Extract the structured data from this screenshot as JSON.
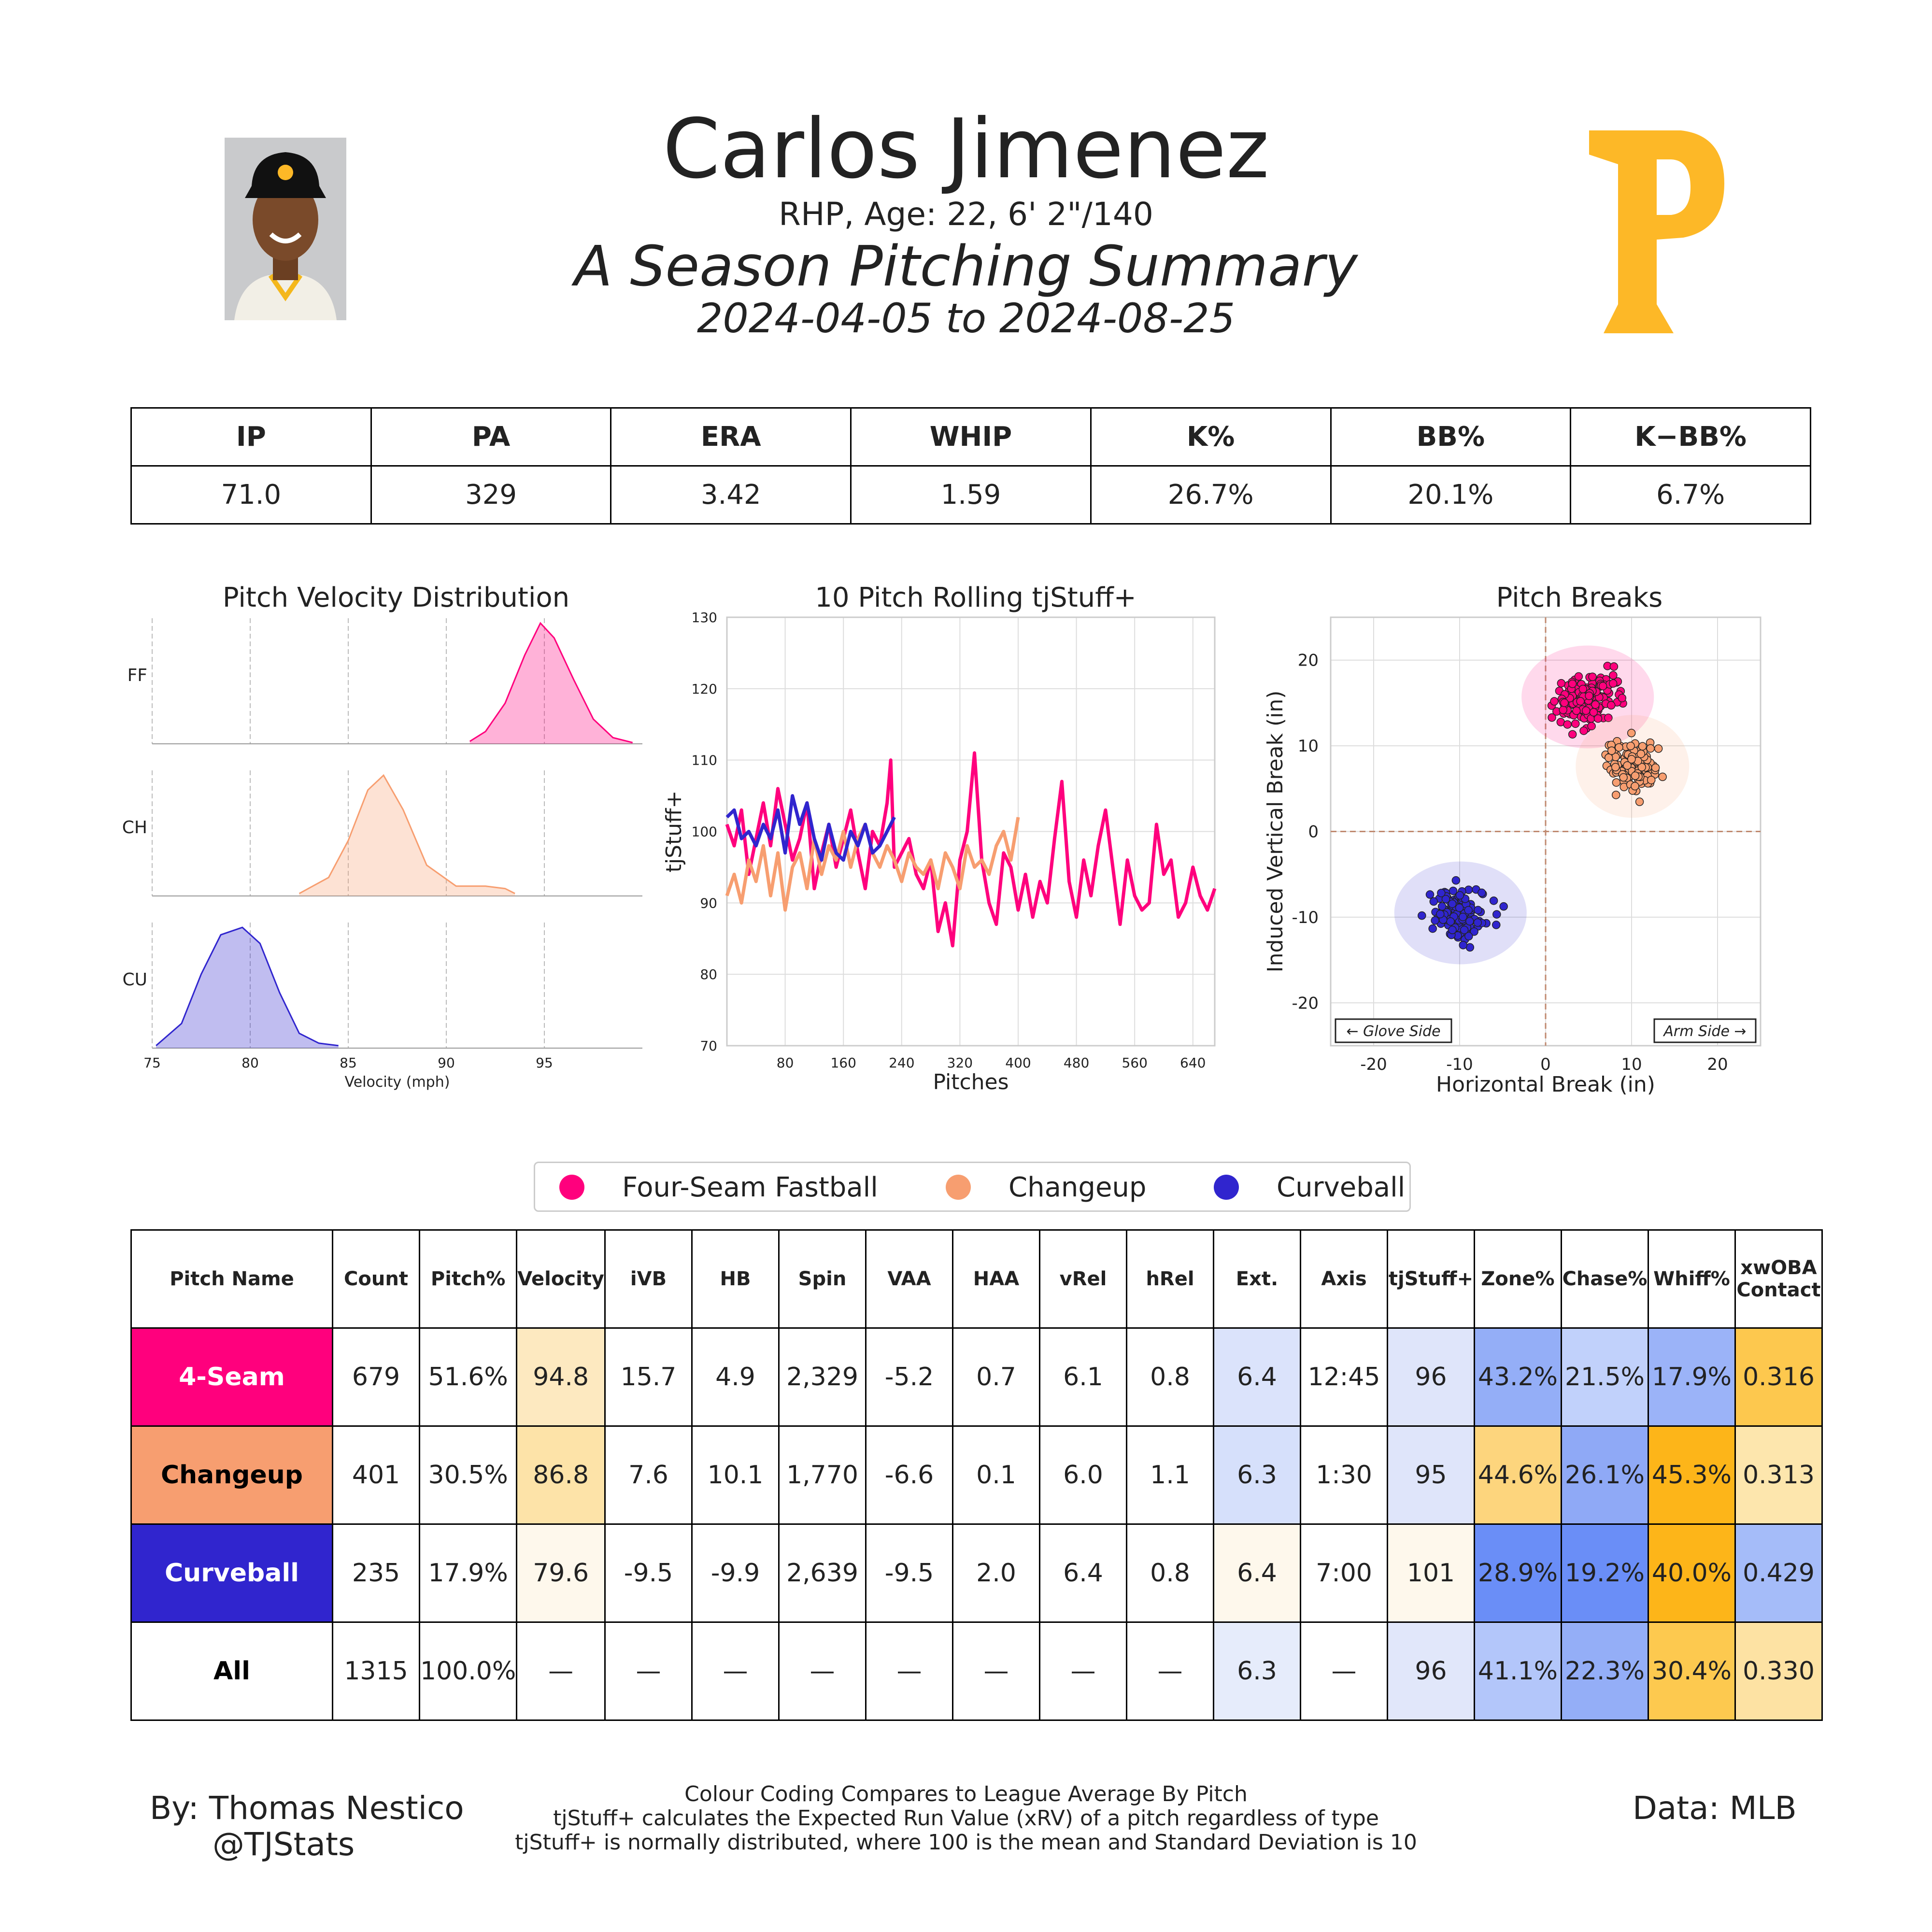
{
  "header": {
    "name": "Carlos Jimenez",
    "bio": "RHP, Age: 22, 6' 2\"/140",
    "subtitle": "A Season Pitching Summary",
    "dates": "2024-04-05 to 2024-08-25"
  },
  "summary": {
    "headers": [
      "IP",
      "PA",
      "ERA",
      "WHIP",
      "K%",
      "BB%",
      "K−BB%"
    ],
    "values": [
      "71.0",
      "329",
      "3.42",
      "1.59",
      "26.7%",
      "20.1%",
      "6.7%"
    ]
  },
  "colors": {
    "four_seam": "#ff007d",
    "changeup": "#f79e70",
    "curveball": "#3025ce",
    "logo": "#fdb827"
  },
  "legend": [
    "Four-Seam Fastball",
    "Changeup",
    "Curveball"
  ],
  "chart_data": [
    {
      "type": "area",
      "title": "Pitch Velocity Distribution",
      "xlabel": "Velocity (mph)",
      "xlim": [
        75,
        100
      ],
      "xticks": [
        75,
        80,
        85,
        90,
        95
      ],
      "series": [
        {
          "name": "FF",
          "x": [
            91.2,
            92,
            93,
            94,
            94.8,
            95.5,
            96.5,
            97.5,
            98.5,
            99.5
          ],
          "y": [
            0.02,
            0.1,
            0.33,
            0.72,
            0.98,
            0.86,
            0.52,
            0.2,
            0.05,
            0.01
          ]
        },
        {
          "name": "CH",
          "x": [
            82.5,
            84,
            85,
            86,
            86.8,
            87.8,
            89,
            90.5,
            92,
            93,
            93.5
          ],
          "y": [
            0.02,
            0.15,
            0.45,
            0.86,
            0.98,
            0.7,
            0.25,
            0.08,
            0.08,
            0.06,
            0.02
          ]
        },
        {
          "name": "CU",
          "x": [
            75.2,
            76.5,
            77.5,
            78.5,
            79.6,
            80.5,
            81.5,
            82.5,
            83.5,
            84.5
          ],
          "y": [
            0.02,
            0.2,
            0.6,
            0.92,
            0.98,
            0.85,
            0.45,
            0.12,
            0.04,
            0.02
          ]
        }
      ]
    },
    {
      "type": "line",
      "title": "10 Pitch Rolling tjStuff+",
      "xlabel": "Pitches",
      "ylabel": "tjStuff+",
      "xticks": [
        80,
        160,
        240,
        320,
        400,
        480,
        560,
        640
      ],
      "yticks": [
        70,
        80,
        90,
        100,
        110,
        120,
        130
      ],
      "xlim": [
        0,
        670
      ],
      "ylim": [
        70,
        130
      ],
      "series": [
        {
          "name": "4-Seam",
          "x": [
            0,
            10,
            20,
            30,
            40,
            50,
            60,
            70,
            80,
            90,
            100,
            110,
            120,
            130,
            140,
            150,
            160,
            170,
            180,
            190,
            200,
            210,
            220,
            225,
            230,
            240,
            250,
            260,
            270,
            280,
            290,
            300,
            310,
            320,
            330,
            340,
            350,
            360,
            370,
            380,
            390,
            400,
            410,
            420,
            430,
            440,
            450,
            460,
            470,
            480,
            490,
            500,
            510,
            520,
            530,
            540,
            550,
            560,
            570,
            580,
            590,
            600,
            610,
            620,
            630,
            640,
            650,
            660,
            670
          ],
          "y": [
            101,
            98,
            103,
            94,
            99,
            104,
            98,
            106,
            101,
            96,
            99,
            104,
            92,
            97,
            101,
            95,
            99,
            103,
            97,
            92,
            100,
            98,
            104,
            110,
            95,
            97,
            99,
            94,
            92,
            96,
            86,
            90,
            84,
            96,
            100,
            111,
            96,
            90,
            87,
            97,
            95,
            89,
            94,
            88,
            93,
            90,
            99,
            107,
            93,
            88,
            96,
            91,
            98,
            103,
            95,
            87,
            96,
            91,
            89,
            90,
            101,
            94,
            96,
            88,
            90,
            95,
            91,
            89,
            92
          ]
        },
        {
          "name": "Changeup",
          "x": [
            0,
            10,
            20,
            30,
            40,
            50,
            60,
            70,
            80,
            90,
            100,
            110,
            120,
            130,
            140,
            150,
            160,
            170,
            180,
            190,
            200,
            210,
            220,
            230,
            240,
            250,
            260,
            270,
            280,
            290,
            300,
            310,
            320,
            330,
            340,
            350,
            360,
            370,
            380,
            390,
            400
          ],
          "y": [
            91,
            94,
            90,
            96,
            93,
            98,
            91,
            97,
            89,
            95,
            97,
            92,
            99,
            94,
            98,
            96,
            100,
            95,
            99,
            101,
            97,
            95,
            98,
            96,
            93,
            97,
            95,
            94,
            96,
            92,
            97,
            95,
            92,
            98,
            95,
            96,
            94,
            98,
            100,
            96,
            102
          ]
        },
        {
          "name": "Curveball",
          "x": [
            0,
            10,
            20,
            30,
            40,
            50,
            60,
            70,
            80,
            90,
            100,
            110,
            120,
            130,
            140,
            150,
            160,
            170,
            180,
            190,
            200,
            210,
            220,
            230
          ],
          "y": [
            102,
            103,
            99,
            100,
            98,
            101,
            99,
            103,
            97,
            105,
            101,
            104,
            99,
            96,
            101,
            97,
            96,
            100,
            98,
            101,
            97,
            98,
            100,
            102
          ]
        }
      ]
    },
    {
      "type": "scatter",
      "title": "Pitch Breaks",
      "xlabel": "Horizontal Break (in)",
      "ylabel": "Induced Vertical Break (in)",
      "xlim": [
        -25,
        25
      ],
      "ylim": [
        -25,
        25
      ],
      "xticks": [
        -20,
        -10,
        0,
        10,
        20
      ],
      "yticks": [
        -20,
        -10,
        0,
        10,
        20
      ],
      "annotations": [
        "← Glove Side",
        "Arm Side →"
      ],
      "series": [
        {
          "name": "Four-Seam Fastball",
          "center": [
            4.9,
            15.7
          ],
          "spread": [
            3.5,
            3.0
          ]
        },
        {
          "name": "Changeup",
          "center": [
            10.1,
            7.6
          ],
          "spread": [
            3.0,
            3.0
          ]
        },
        {
          "name": "Curveball",
          "center": [
            -9.9,
            -9.5
          ],
          "spread": [
            3.5,
            3.0
          ]
        }
      ]
    }
  ],
  "pitch_table": {
    "headers": [
      "Pitch Name",
      "Count",
      "Pitch%",
      "Velocity",
      "iVB",
      "HB",
      "Spin",
      "VAA",
      "HAA",
      "vRel",
      "hRel",
      "Ext.",
      "Axis",
      "tjStuff+",
      "Zone%",
      "Chase%",
      "Whiff%",
      "xwOBA Contact"
    ],
    "rows": [
      {
        "cells": [
          "4-Seam",
          "679",
          "51.6%",
          "94.8",
          "15.7",
          "4.9",
          "2,329",
          "-5.2",
          "0.7",
          "6.1",
          "0.8",
          "6.4",
          "12:45",
          "96",
          "43.2%",
          "21.5%",
          "17.9%",
          "0.316"
        ]
      },
      {
        "cells": [
          "Changeup",
          "401",
          "30.5%",
          "86.8",
          "7.6",
          "10.1",
          "1,770",
          "-6.6",
          "0.1",
          "6.0",
          "1.1",
          "6.3",
          "1:30",
          "95",
          "44.6%",
          "26.1%",
          "45.3%",
          "0.313"
        ]
      },
      {
        "cells": [
          "Curveball",
          "235",
          "17.9%",
          "79.6",
          "-9.5",
          "-9.9",
          "2,639",
          "-9.5",
          "2.0",
          "6.4",
          "0.8",
          "6.4",
          "7:00",
          "101",
          "28.9%",
          "19.2%",
          "40.0%",
          "0.429"
        ]
      },
      {
        "cells": [
          "All",
          "1315",
          "100.0%",
          "—",
          "—",
          "—",
          "—",
          "—",
          "—",
          "—",
          "—",
          "6.3",
          "—",
          "96",
          "41.1%",
          "22.3%",
          "30.4%",
          "0.330"
        ]
      }
    ]
  },
  "footer": {
    "author": "By: Thomas Nestico",
    "handle": "@TJStats",
    "notes": [
      "Colour Coding Compares to League Average By Pitch",
      "tjStuff+ calculates the Expected Run Value (xRV) of a pitch regardless of type",
      "tjStuff+ is normally distributed, where 100 is the mean and Standard Deviation is 10"
    ],
    "source": "Data: MLB"
  }
}
